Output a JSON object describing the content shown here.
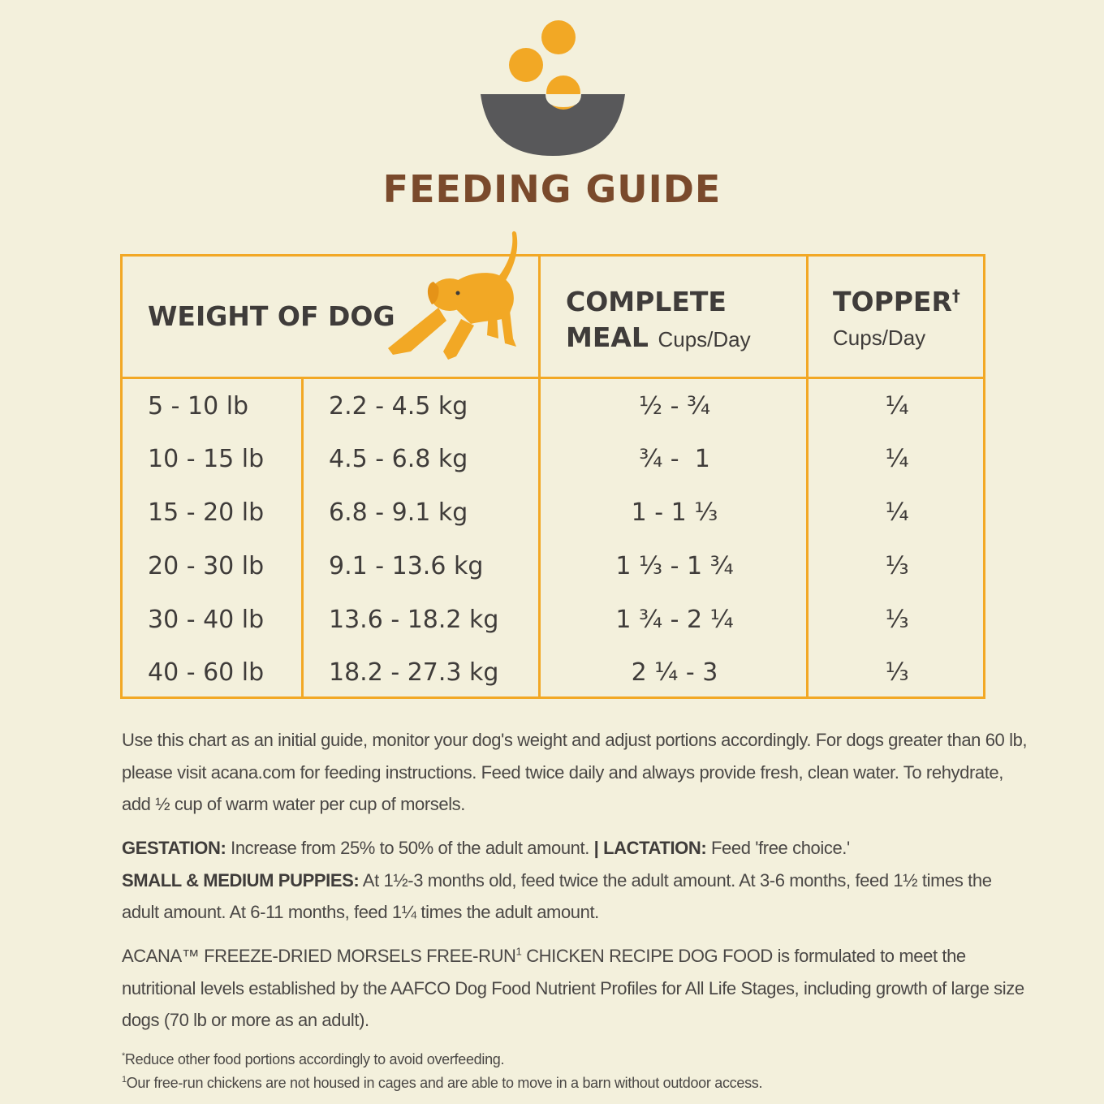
{
  "title": "FEEDING GUIDE",
  "colors": {
    "background": "#f3f0dc",
    "accent": "#f2a825",
    "title": "#7a4a2c",
    "text": "#3f3c3a",
    "bowl": "#58585a"
  },
  "icons": {
    "logo": "bowl-with-morsels-icon",
    "dog": "playing-dog-icon"
  },
  "table": {
    "weight_header": "WEIGHT OF DOG",
    "meal_header_line1": "COMPLETE",
    "meal_header_line2": "MEAL",
    "meal_unit": "Cups/Day",
    "topper_header": "TOPPER",
    "topper_mark": "†",
    "topper_unit": "Cups/Day",
    "rows": [
      {
        "lb": "5 - 10 lb",
        "kg": "2.2 - 4.5 kg",
        "meal": "½ - ¾",
        "topper": "¼"
      },
      {
        "lb": "10 - 15 lb",
        "kg": "4.5 - 6.8 kg",
        "meal": "¾ -  1",
        "topper": "¼"
      },
      {
        "lb": "15 - 20 lb",
        "kg": "6.8 - 9.1 kg",
        "meal": "1 - 1 ⅓",
        "topper": "¼"
      },
      {
        "lb": "20 - 30 lb",
        "kg": "9.1 - 13.6 kg",
        "meal": "1 ⅓ - 1 ¾",
        "topper": "⅓"
      },
      {
        "lb": "30 - 40 lb",
        "kg": "13.6 - 18.2 kg",
        "meal": "1 ¾ - 2 ¼",
        "topper": "⅓"
      },
      {
        "lb": "40 - 60 lb",
        "kg": "18.2 - 27.3 kg",
        "meal": "2 ¼ - 3",
        "topper": "⅓"
      }
    ]
  },
  "notes": {
    "intro": "Use this chart as an initial guide, monitor your dog's weight and adjust portions accordingly. For dogs greater than 60 lb, please visit acana.com for feeding instructions. Feed twice daily and always provide fresh, clean water. To rehydrate, add ½ cup of warm water per cup of morsels.",
    "gestation_label": "GESTATION:",
    "gestation_text": " Increase from 25% to 50% of the adult amount. ",
    "separator": "|",
    "lactation_label": " LACTATION:",
    "lactation_text": " Feed 'free choice.'",
    "puppies_label": "SMALL & MEDIUM PUPPIES:",
    "puppies_text": " At 1½-3 months old, feed twice the adult amount. At 3-6 months, feed 1½ times the adult amount. At 6-11 months, feed 1¼ times the adult amount.",
    "statement_part1": "ACANA™ FREEZE-DRIED MORSELS FREE-RUN",
    "statement_sup": "1",
    "statement_part2": " CHICKEN RECIPE DOG FOOD is formulated to meet the nutritional levels established by the AAFCO Dog Food Nutrient Profiles for All Life Stages, including growth of large size dogs (70 lb or more as an adult)."
  },
  "footnotes": {
    "f1_mark": "*",
    "f1_text": "Reduce other food portions accordingly to avoid overfeeding.",
    "f2_mark": "1",
    "f2_text": "Our free-run chickens are not housed in cages and are able to move in a barn without outdoor access."
  }
}
